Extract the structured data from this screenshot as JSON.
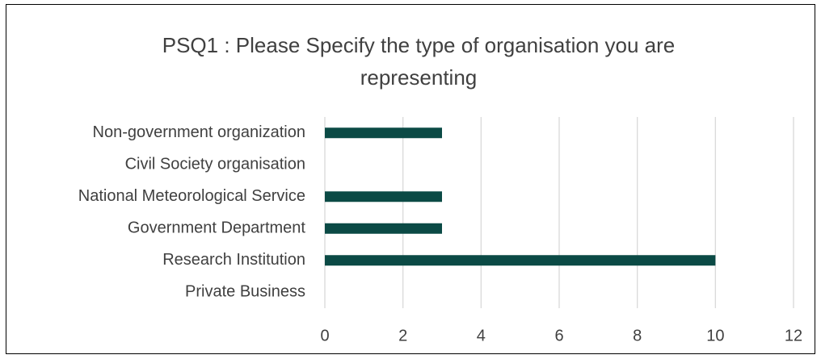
{
  "chart_data": {
    "type": "bar",
    "orientation": "horizontal",
    "title": "PSQ1 : Please Specify the type of organisation you are representing",
    "categories": [
      "Non-government organization",
      "Civil Society organisation",
      "National Meteorological Service",
      "Government Department",
      "Research Institution",
      "Private Business"
    ],
    "values": [
      3,
      0,
      3,
      3,
      10,
      0
    ],
    "color": "#0b4a45",
    "xlim": [
      0,
      12
    ],
    "xticks": [
      0,
      2,
      4,
      6,
      8,
      10,
      12
    ],
    "grid": true
  }
}
